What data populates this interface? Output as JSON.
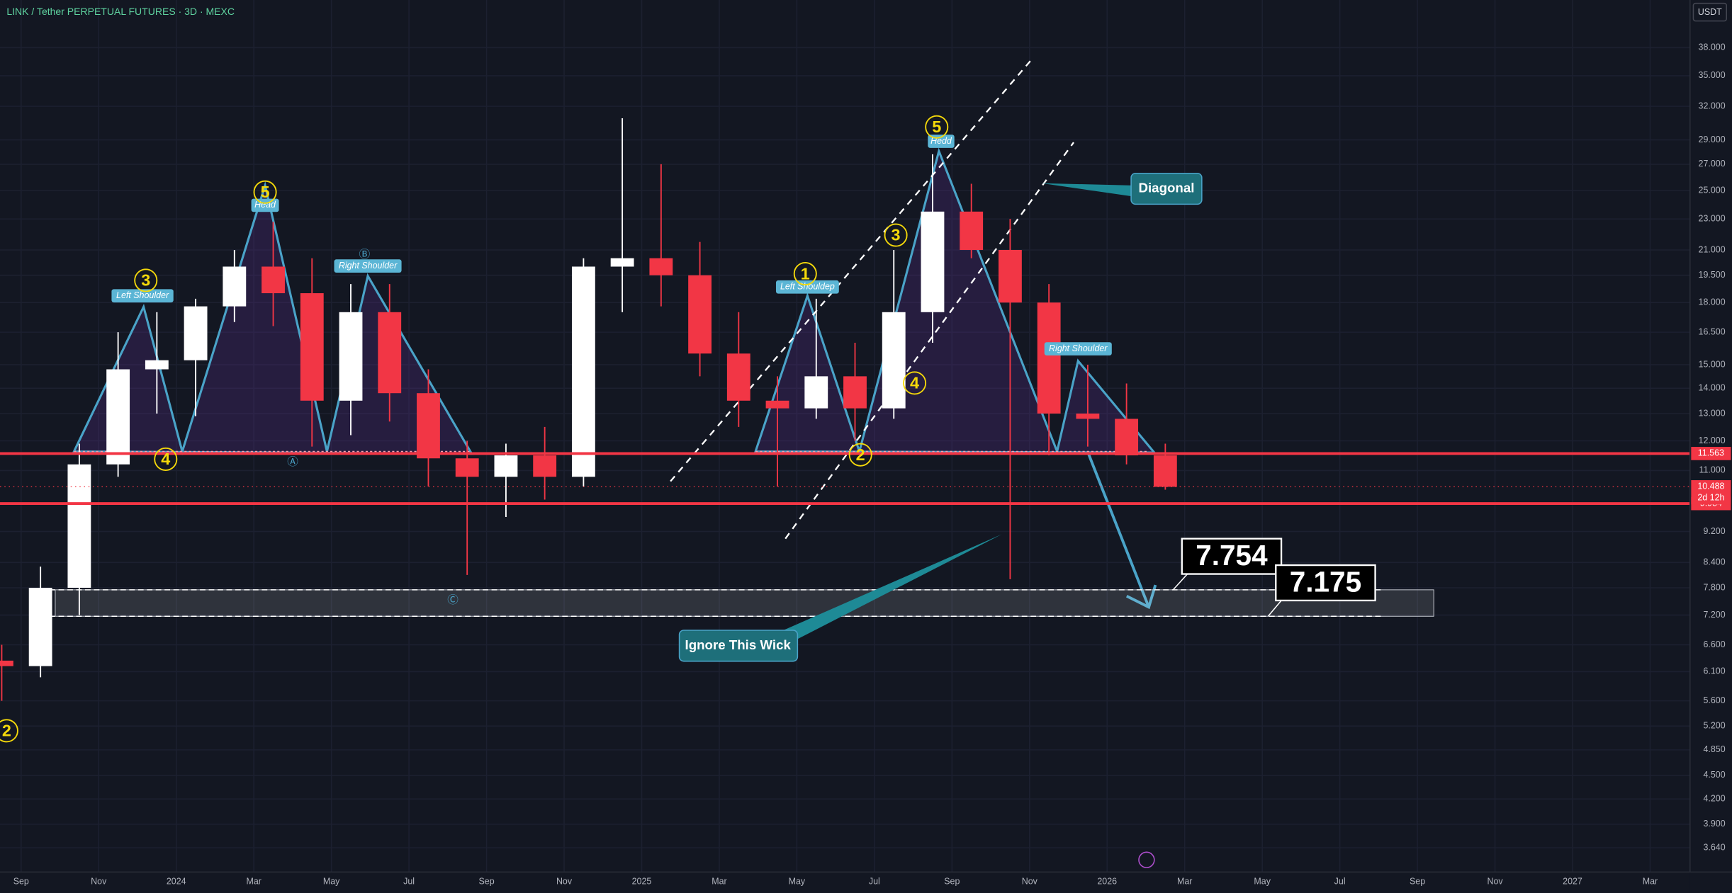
{
  "chart_data": {
    "type": "candlestick",
    "title": "LINK / Tether PERPETUAL FUTURES · 3D · MEXC",
    "currency": "USDT",
    "log_scale": true,
    "grid": true,
    "up_color": "#ffffff",
    "down_color": "#f23645",
    "x": [
      "2023-08",
      "2023-09",
      "2023-10",
      "2023-11",
      "2023-12",
      "2024-01",
      "2024-02",
      "2024-03",
      "2024-04",
      "2024-05",
      "2024-06",
      "2024-07",
      "2024-08",
      "2024-09",
      "2024-10",
      "2024-11",
      "2024-12",
      "2025-01",
      "2025-02",
      "2025-03",
      "2025-04",
      "2025-05",
      "2025-06",
      "2025-07",
      "2025-08",
      "2025-09",
      "2025-10",
      "2025-11",
      "2025-12",
      "2026-01",
      "2026-02"
    ],
    "open": [
      6.3,
      6.2,
      7.8,
      11.2,
      14.8,
      15.2,
      17.8,
      20.0,
      18.5,
      13.5,
      17.5,
      13.8,
      11.4,
      10.8,
      11.5,
      10.8,
      20.0,
      20.5,
      19.5,
      15.5,
      13.5,
      13.2,
      14.5,
      13.2,
      17.5,
      23.5,
      21.0,
      18.0,
      13.0,
      12.8,
      11.5
    ],
    "high": [
      6.6,
      8.3,
      11.9,
      16.5,
      17.5,
      18.2,
      21.0,
      22.8,
      20.5,
      19.0,
      19.0,
      14.8,
      12.0,
      11.9,
      12.5,
      20.5,
      30.9,
      27.0,
      21.5,
      17.5,
      14.5,
      18.2,
      16.0,
      21.0,
      27.8,
      25.5,
      23.0,
      19.0,
      15.0,
      14.2,
      11.9
    ],
    "low": [
      5.6,
      6.0,
      7.2,
      10.8,
      13.0,
      12.9,
      17.0,
      16.8,
      11.8,
      12.2,
      12.7,
      10.5,
      8.1,
      9.6,
      10.1,
      10.5,
      17.5,
      17.8,
      14.5,
      12.5,
      10.5,
      12.8,
      12.0,
      12.8,
      16.0,
      20.5,
      8.0,
      11.5,
      11.8,
      11.2,
      10.4
    ],
    "close": [
      6.2,
      7.8,
      11.2,
      14.8,
      15.2,
      17.8,
      20.0,
      18.5,
      13.5,
      17.5,
      13.8,
      11.4,
      10.8,
      11.5,
      10.8,
      20.0,
      20.5,
      19.5,
      15.5,
      13.5,
      13.2,
      14.5,
      13.2,
      17.5,
      23.5,
      21.0,
      18.0,
      13.0,
      12.8,
      11.5,
      10.488
    ],
    "xlim": [
      "2023-08",
      "2027-04"
    ],
    "xticks": [
      {
        "value": "2023-09",
        "label": "Sep"
      },
      {
        "value": "2023-11",
        "label": "Nov"
      },
      {
        "value": "2024-01",
        "label": "2024"
      },
      {
        "value": "2024-03",
        "label": "Mar"
      },
      {
        "value": "2024-05",
        "label": "May"
      },
      {
        "value": "2024-07",
        "label": "Jul"
      },
      {
        "value": "2024-09",
        "label": "Sep"
      },
      {
        "value": "2024-11",
        "label": "Nov"
      },
      {
        "value": "2025-01",
        "label": "2025"
      },
      {
        "value": "2025-03",
        "label": "Mar"
      },
      {
        "value": "2025-05",
        "label": "May"
      },
      {
        "value": "2025-07",
        "label": "Jul"
      },
      {
        "value": "2025-09",
        "label": "Sep"
      },
      {
        "value": "2025-11",
        "label": "Nov"
      },
      {
        "value": "2026-01",
        "label": "2026"
      },
      {
        "value": "2026-03",
        "label": "Mar"
      },
      {
        "value": "2026-05",
        "label": "May"
      },
      {
        "value": "2026-07",
        "label": "Jul"
      },
      {
        "value": "2026-09",
        "label": "Sep"
      },
      {
        "value": "2026-11",
        "label": "Nov"
      },
      {
        "value": "2027-01",
        "label": "2027"
      },
      {
        "value": "2027-03",
        "label": "Mar"
      }
    ],
    "ylim": [
      3.39,
      43.7
    ],
    "yticks": [
      {
        "value": 38,
        "label": "38.000"
      },
      {
        "value": 35,
        "label": "35.000"
      },
      {
        "value": 32,
        "label": "32.000"
      },
      {
        "value": 29,
        "label": "29.000"
      },
      {
        "value": 27,
        "label": "27.000"
      },
      {
        "value": 25,
        "label": "25.000"
      },
      {
        "value": 23,
        "label": "23.000"
      },
      {
        "value": 21,
        "label": "21.000"
      },
      {
        "value": 19.5,
        "label": "19.500"
      },
      {
        "value": 18,
        "label": "18.000"
      },
      {
        "value": 16.5,
        "label": "16.500"
      },
      {
        "value": 15,
        "label": "15.000"
      },
      {
        "value": 14,
        "label": "14.000"
      },
      {
        "value": 13,
        "label": "13.000"
      },
      {
        "value": 12,
        "label": "12.000"
      },
      {
        "value": 11,
        "label": "11.000"
      },
      {
        "value": 9.2,
        "label": "9.200"
      },
      {
        "value": 8.4,
        "label": "8.400"
      },
      {
        "value": 7.8,
        "label": "7.800"
      },
      {
        "value": 7.2,
        "label": "7.200"
      },
      {
        "value": 6.6,
        "label": "6.600"
      },
      {
        "value": 6.1,
        "label": "6.100"
      },
      {
        "value": 5.6,
        "label": "5.600"
      },
      {
        "value": 5.2,
        "label": "5.200"
      },
      {
        "value": 4.85,
        "label": "4.850"
      },
      {
        "value": 4.5,
        "label": "4.500"
      },
      {
        "value": 4.2,
        "label": "4.200"
      },
      {
        "value": 3.9,
        "label": "3.900"
      },
      {
        "value": 3.64,
        "label": "3.640"
      }
    ],
    "levels": [
      {
        "value": 11.563,
        "color": "#f23645"
      },
      {
        "value": 9.984,
        "color": "#f23645"
      }
    ],
    "last_price": {
      "value": 10.488,
      "countdown": "2d 12h"
    },
    "targets": [
      7.754,
      7.175
    ],
    "pattern_labels": [
      "Left Shoulder",
      "Head",
      "Right Shoulder",
      "Left Shouldep",
      "Hedd",
      "Right Shoulder"
    ],
    "wave_labels": [
      "3",
      "4",
      "5",
      "1",
      "2",
      "3",
      "4",
      "5",
      "2"
    ],
    "point_labels": [
      "Ⓐ",
      "Ⓑ",
      "Ⓒ"
    ],
    "notes": [
      "Diagonal",
      "Ignore This Wick"
    ]
  }
}
